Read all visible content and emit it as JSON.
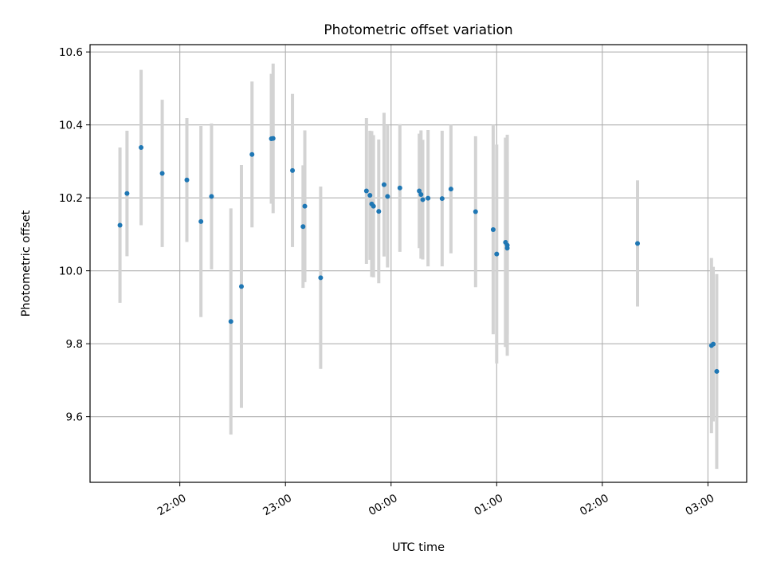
{
  "chart_data": {
    "type": "scatter",
    "title": "Photometric offset variation",
    "xlabel": "UTC time",
    "ylabel": "Photometric offset",
    "ylim": [
      9.42,
      10.62
    ],
    "yticks": [
      "9.6",
      "9.8",
      "10.0",
      "10.2",
      "10.4",
      "10.6"
    ],
    "xlim": [
      "21:09",
      "03:22"
    ],
    "xticks": [
      "22:00",
      "23:00",
      "00:00",
      "01:00",
      "02:00",
      "03:00"
    ],
    "grid": true,
    "marker_color": "#1f77b4",
    "errorbar_color": "#d3d3d3",
    "points": [
      {
        "x": "21:26",
        "y": 10.125,
        "yerr": 0.213
      },
      {
        "x": "21:30",
        "y": 10.212,
        "yerr": 0.172
      },
      {
        "x": "21:38",
        "y": 10.338,
        "yerr": 0.213
      },
      {
        "x": "21:50",
        "y": 10.267,
        "yerr": 0.202
      },
      {
        "x": "22:04",
        "y": 10.249,
        "yerr": 0.17
      },
      {
        "x": "22:12",
        "y": 10.135,
        "yerr": 0.262
      },
      {
        "x": "22:18",
        "y": 10.204,
        "yerr": 0.2
      },
      {
        "x": "22:29",
        "y": 9.861,
        "yerr": 0.31
      },
      {
        "x": "22:35",
        "y": 9.957,
        "yerr": 0.333
      },
      {
        "x": "22:41",
        "y": 10.319,
        "yerr": 0.2
      },
      {
        "x": "22:52",
        "y": 10.362,
        "yerr": 0.178
      },
      {
        "x": "22:53",
        "y": 10.363,
        "yerr": 0.205
      },
      {
        "x": "23:04",
        "y": 10.275,
        "yerr": 0.21
      },
      {
        "x": "23:10",
        "y": 10.121,
        "yerr": 0.168
      },
      {
        "x": "23:11",
        "y": 10.177,
        "yerr": 0.208
      },
      {
        "x": "23:20",
        "y": 9.981,
        "yerr": 0.25
      },
      {
        "x": "23:46",
        "y": 10.219,
        "yerr": 0.2
      },
      {
        "x": "23:48",
        "y": 10.207,
        "yerr": 0.177
      },
      {
        "x": "23:49",
        "y": 10.183,
        "yerr": 0.2
      },
      {
        "x": "23:50",
        "y": 10.177,
        "yerr": 0.195
      },
      {
        "x": "23:53",
        "y": 10.163,
        "yerr": 0.197
      },
      {
        "x": "23:56",
        "y": 10.236,
        "yerr": 0.197
      },
      {
        "x": "23:58",
        "y": 10.204,
        "yerr": 0.195
      },
      {
        "x": "00:05",
        "y": 10.227,
        "yerr": 0.175
      },
      {
        "x": "00:16",
        "y": 10.219,
        "yerr": 0.157
      },
      {
        "x": "00:17",
        "y": 10.209,
        "yerr": 0.176
      },
      {
        "x": "00:18",
        "y": 10.195,
        "yerr": 0.164
      },
      {
        "x": "00:21",
        "y": 10.199,
        "yerr": 0.187
      },
      {
        "x": "00:29",
        "y": 10.198,
        "yerr": 0.186
      },
      {
        "x": "00:34",
        "y": 10.224,
        "yerr": 0.176
      },
      {
        "x": "00:48",
        "y": 10.162,
        "yerr": 0.207
      },
      {
        "x": "00:58",
        "y": 10.113,
        "yerr": 0.287
      },
      {
        "x": "01:00",
        "y": 10.046,
        "yerr": 0.3
      },
      {
        "x": "01:05",
        "y": 10.078,
        "yerr": 0.287
      },
      {
        "x": "01:06",
        "y": 10.07,
        "yerr": 0.303
      },
      {
        "x": "01:06",
        "y": 10.062,
        "yerr": 0.237
      },
      {
        "x": "02:20",
        "y": 10.075,
        "yerr": 0.173
      },
      {
        "x": "03:02",
        "y": 9.795,
        "yerr": 0.24
      },
      {
        "x": "03:03",
        "y": 9.799,
        "yerr": 0.212
      },
      {
        "x": "03:05",
        "y": 9.724,
        "yerr": 0.267
      }
    ]
  }
}
